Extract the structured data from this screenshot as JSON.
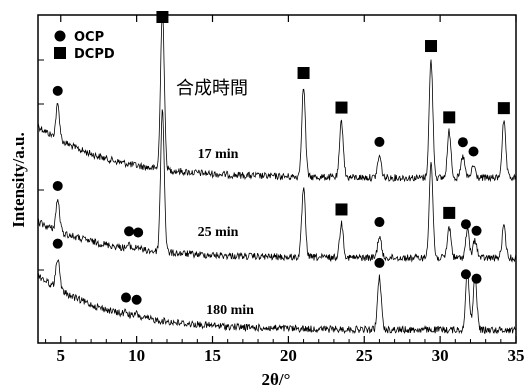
{
  "chart_data": {
    "type": "line",
    "xlabel": "2θ/°",
    "ylabel": "Intensity/a.u.",
    "xlim": [
      3.5,
      35
    ],
    "xticks": [
      5,
      10,
      15,
      20,
      25,
      30,
      35
    ],
    "y_ticks_shown": false,
    "annotation": "合成時間",
    "legend": [
      {
        "label": "OCP",
        "marker": "circle"
      },
      {
        "label": "DCPD",
        "marker": "square"
      }
    ],
    "series": [
      {
        "name": "17 min",
        "peaks": [
          {
            "x": 4.8,
            "h": 0.55
          },
          {
            "x": 11.7,
            "h": 2.6
          },
          {
            "x": 21.0,
            "h": 1.45
          },
          {
            "x": 23.5,
            "h": 0.9
          },
          {
            "x": 26.0,
            "h": 0.35
          },
          {
            "x": 29.4,
            "h": 1.9
          },
          {
            "x": 30.6,
            "h": 0.75
          },
          {
            "x": 31.5,
            "h": 0.35
          },
          {
            "x": 32.2,
            "h": 0.2
          },
          {
            "x": 34.2,
            "h": 0.9
          }
        ],
        "markers": [
          {
            "x": 4.8,
            "type": "circle"
          },
          {
            "x": 11.7,
            "type": "square"
          },
          {
            "x": 21.0,
            "type": "square"
          },
          {
            "x": 23.5,
            "type": "square"
          },
          {
            "x": 26.0,
            "type": "circle"
          },
          {
            "x": 29.4,
            "type": "square"
          },
          {
            "x": 30.6,
            "type": "square"
          },
          {
            "x": 31.5,
            "type": "circle"
          },
          {
            "x": 32.2,
            "type": "circle"
          },
          {
            "x": 34.2,
            "type": "square"
          }
        ]
      },
      {
        "name": "25 min",
        "peaks": [
          {
            "x": 4.8,
            "h": 0.5
          },
          {
            "x": 9.5,
            "h": 0.05
          },
          {
            "x": 10.1,
            "h": 0.05
          },
          {
            "x": 11.7,
            "h": 2.3
          },
          {
            "x": 21.0,
            "h": 1.1
          },
          {
            "x": 23.5,
            "h": 0.55
          },
          {
            "x": 26.0,
            "h": 0.35
          },
          {
            "x": 29.4,
            "h": 1.55
          },
          {
            "x": 30.6,
            "h": 0.5
          },
          {
            "x": 31.8,
            "h": 0.45
          },
          {
            "x": 32.3,
            "h": 0.3
          },
          {
            "x": 34.2,
            "h": 0.5
          }
        ],
        "markers": [
          {
            "x": 4.8,
            "type": "circle"
          },
          {
            "x": 9.5,
            "type": "circle"
          },
          {
            "x": 10.1,
            "type": "circle"
          },
          {
            "x": 23.5,
            "type": "square"
          },
          {
            "x": 26.0,
            "type": "circle"
          },
          {
            "x": 30.6,
            "type": "square"
          },
          {
            "x": 31.7,
            "type": "circle"
          },
          {
            "x": 32.4,
            "type": "circle"
          }
        ]
      },
      {
        "name": "180 min",
        "peaks": [
          {
            "x": 4.8,
            "h": 0.5
          },
          {
            "x": 9.3,
            "h": 0.05
          },
          {
            "x": 10.0,
            "h": 0.05
          },
          {
            "x": 26.0,
            "h": 0.85
          },
          {
            "x": 31.8,
            "h": 0.95
          },
          {
            "x": 32.3,
            "h": 0.85
          }
        ],
        "markers": [
          {
            "x": 4.8,
            "type": "circle"
          },
          {
            "x": 9.3,
            "type": "circle"
          },
          {
            "x": 10.0,
            "type": "circle"
          },
          {
            "x": 26.0,
            "type": "circle"
          },
          {
            "x": 31.7,
            "type": "circle"
          },
          {
            "x": 32.4,
            "type": "circle"
          }
        ]
      }
    ]
  }
}
